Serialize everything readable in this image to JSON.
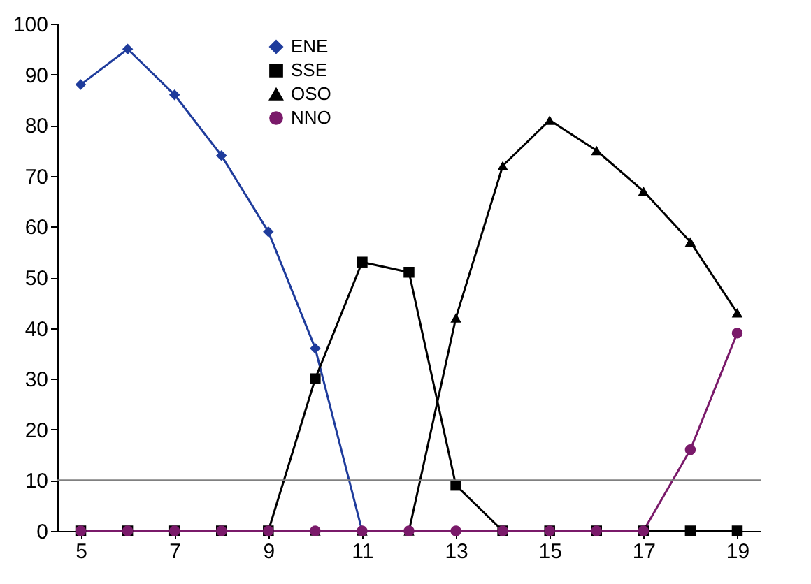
{
  "chart_data": {
    "type": "line",
    "x": [
      5,
      6,
      7,
      8,
      9,
      10,
      11,
      12,
      13,
      14,
      15,
      16,
      17,
      18,
      19
    ],
    "xlim": [
      4.5,
      19.5
    ],
    "xticks": [
      5,
      7,
      9,
      11,
      13,
      15,
      17,
      19
    ],
    "ylim": [
      0,
      100
    ],
    "yticks": [
      0,
      10,
      20,
      30,
      40,
      50,
      60,
      70,
      80,
      90,
      100
    ],
    "grid": false,
    "legend": "top",
    "ref_lines": [
      {
        "axis": "y",
        "value": 10,
        "color": "#808080"
      }
    ],
    "series": [
      {
        "name": "ENE",
        "color": "#1f3c9c",
        "marker": "diamond",
        "values": [
          88,
          95,
          86,
          74,
          59,
          36,
          0,
          null,
          null,
          null,
          null,
          null,
          null,
          null,
          null
        ]
      },
      {
        "name": "SSE",
        "color": "#000000",
        "marker": "square",
        "values": [
          0,
          0,
          0,
          0,
          0,
          30,
          53,
          51,
          9,
          0,
          0,
          0,
          0,
          0,
          0
        ]
      },
      {
        "name": "OSO",
        "color": "#000000",
        "marker": "triangle",
        "values": [
          0,
          0,
          0,
          0,
          0,
          0,
          0,
          0,
          42,
          72,
          81,
          75,
          67,
          57,
          43
        ]
      },
      {
        "name": "NNO",
        "color": "#7a1a6a",
        "marker": "circle",
        "values": [
          0,
          0,
          0,
          0,
          0,
          0,
          0,
          0,
          0,
          0,
          0,
          0,
          0,
          16,
          39
        ]
      }
    ]
  }
}
